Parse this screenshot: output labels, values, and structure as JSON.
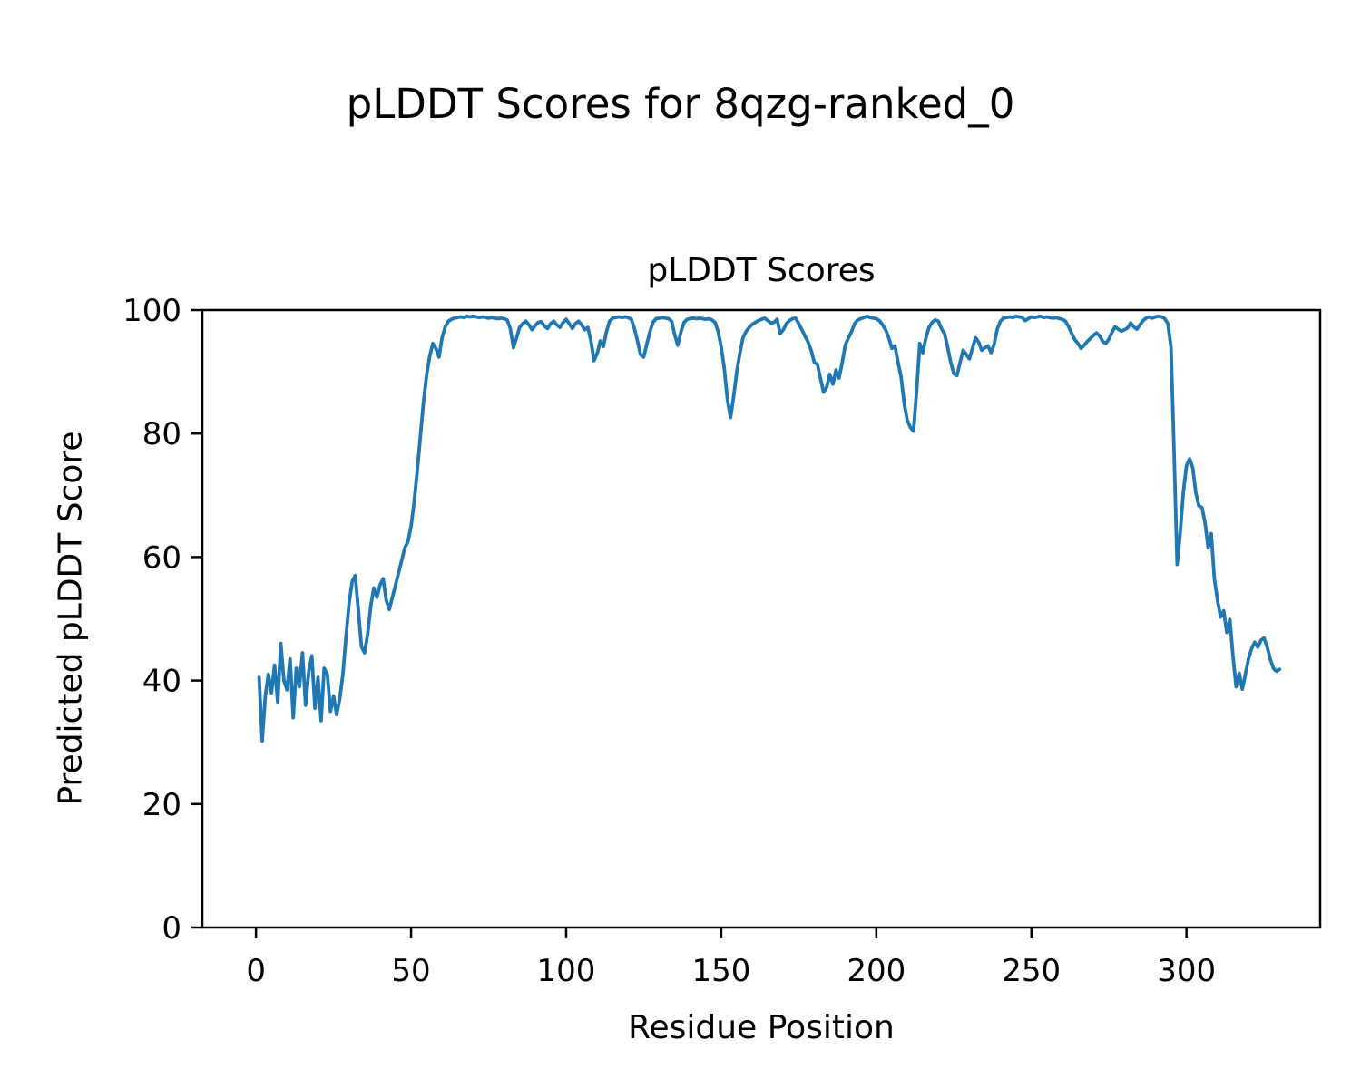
{
  "figure": {
    "title": "pLDDT Scores for 8qzg-ranked_0"
  },
  "chart_data": {
    "type": "line",
    "title": "pLDDT Scores",
    "xlabel": "Residue Position",
    "ylabel": "Predicted pLDDT Score",
    "xlim": [
      -17.3,
      343.1
    ],
    "ylim": [
      0,
      100
    ],
    "xticks": [
      0,
      50,
      100,
      150,
      200,
      250,
      300
    ],
    "yticks": [
      0,
      20,
      40,
      60,
      80,
      100
    ],
    "grid": false,
    "legend": "none",
    "line_color": "#1f77b4",
    "line_width": 3.8,
    "series": [
      {
        "name": "pLDDT",
        "x_start": 1,
        "x_step": 1,
        "values": [
          40.5,
          30.2,
          37.5,
          41.0,
          38.0,
          42.5,
          36.5,
          46.0,
          40.0,
          38.5,
          43.5,
          34.0,
          42.0,
          39.0,
          44.5,
          36.0,
          41.5,
          44.0,
          35.5,
          40.5,
          33.5,
          42.0,
          41.0,
          35.0,
          37.5,
          34.5,
          37.0,
          41.0,
          47.0,
          52.5,
          56.0,
          57.0,
          51.5,
          45.5,
          44.5,
          47.5,
          52.0,
          55.0,
          53.5,
          55.5,
          56.5,
          53.0,
          51.5,
          53.5,
          55.5,
          57.5,
          59.5,
          61.5,
          62.5,
          65.0,
          69.0,
          74.0,
          79.5,
          85.0,
          89.5,
          92.5,
          94.6,
          93.8,
          92.4,
          95.5,
          97.3,
          98.2,
          98.5,
          98.7,
          98.8,
          98.9,
          98.8,
          99.0,
          98.9,
          99.0,
          98.9,
          98.8,
          98.9,
          98.8,
          98.7,
          98.8,
          98.7,
          98.6,
          98.7,
          98.6,
          98.4,
          97.0,
          93.9,
          95.5,
          97.2,
          97.8,
          98.2,
          97.6,
          96.8,
          97.5,
          98.0,
          98.1,
          97.4,
          97.0,
          97.8,
          98.2,
          97.6,
          97.2,
          98.0,
          98.5,
          97.8,
          97.0,
          97.8,
          98.2,
          97.6,
          96.8,
          97.2,
          95.0,
          91.8,
          93.0,
          95.0,
          94.1,
          96.5,
          98.2,
          98.7,
          98.8,
          98.9,
          98.8,
          98.9,
          98.8,
          98.5,
          97.0,
          95.0,
          92.8,
          92.4,
          94.5,
          96.5,
          98.0,
          98.6,
          98.7,
          98.8,
          98.7,
          98.6,
          98.2,
          96.0,
          94.3,
          96.5,
          98.0,
          98.5,
          98.6,
          98.7,
          98.6,
          98.7,
          98.6,
          98.5,
          98.6,
          98.4,
          98.0,
          96.5,
          94.0,
          90.5,
          85.5,
          82.6,
          86.0,
          90.0,
          93.0,
          95.5,
          96.5,
          97.2,
          97.7,
          98.0,
          98.3,
          98.5,
          98.7,
          98.3,
          97.9,
          98.0,
          98.5,
          96.2,
          96.8,
          97.8,
          98.3,
          98.6,
          98.7,
          97.8,
          96.8,
          95.8,
          94.8,
          93.5,
          91.5,
          91.2,
          88.9,
          86.7,
          87.5,
          89.6,
          88.0,
          90.3,
          89.0,
          91.5,
          94.3,
          95.5,
          96.5,
          97.8,
          98.4,
          98.6,
          98.8,
          99.0,
          98.8,
          98.7,
          98.6,
          98.3,
          97.6,
          96.8,
          95.5,
          93.8,
          94.2,
          91.5,
          89.1,
          84.8,
          82.1,
          81.0,
          80.4,
          87.0,
          94.6,
          93.1,
          95.5,
          97.2,
          98.0,
          98.4,
          98.2,
          97.0,
          96.2,
          94.0,
          91.5,
          89.7,
          89.4,
          91.5,
          93.5,
          92.8,
          92.1,
          93.8,
          95.5,
          94.8,
          93.5,
          93.9,
          94.2,
          93.1,
          94.5,
          96.9,
          98.2,
          98.7,
          98.8,
          98.9,
          98.8,
          99.0,
          98.9,
          98.8,
          98.3,
          98.6,
          98.9,
          98.8,
          98.9,
          99.0,
          98.8,
          98.9,
          98.8,
          98.7,
          98.8,
          98.6,
          98.5,
          98.2,
          97.3,
          96.2,
          95.2,
          94.6,
          93.8,
          94.3,
          94.9,
          95.4,
          95.9,
          96.3,
          95.8,
          94.9,
          94.6,
          95.3,
          96.4,
          97.3,
          96.9,
          96.6,
          96.8,
          97.1,
          97.9,
          97.3,
          96.9,
          97.6,
          98.3,
          98.7,
          98.9,
          98.7,
          98.9,
          99.0,
          98.9,
          98.6,
          97.8,
          94.0,
          77.0,
          58.8,
          64.0,
          70.5,
          74.8,
          75.9,
          74.5,
          70.5,
          68.3,
          68.0,
          65.5,
          61.5,
          63.8,
          56.5,
          53.0,
          50.3,
          51.3,
          47.8,
          49.9,
          44.0,
          39.0,
          41.2,
          38.6,
          41.0,
          43.5,
          45.2,
          46.2,
          45.4,
          46.5,
          46.9,
          45.5,
          43.5,
          42.0,
          41.5,
          41.8
        ]
      }
    ]
  }
}
